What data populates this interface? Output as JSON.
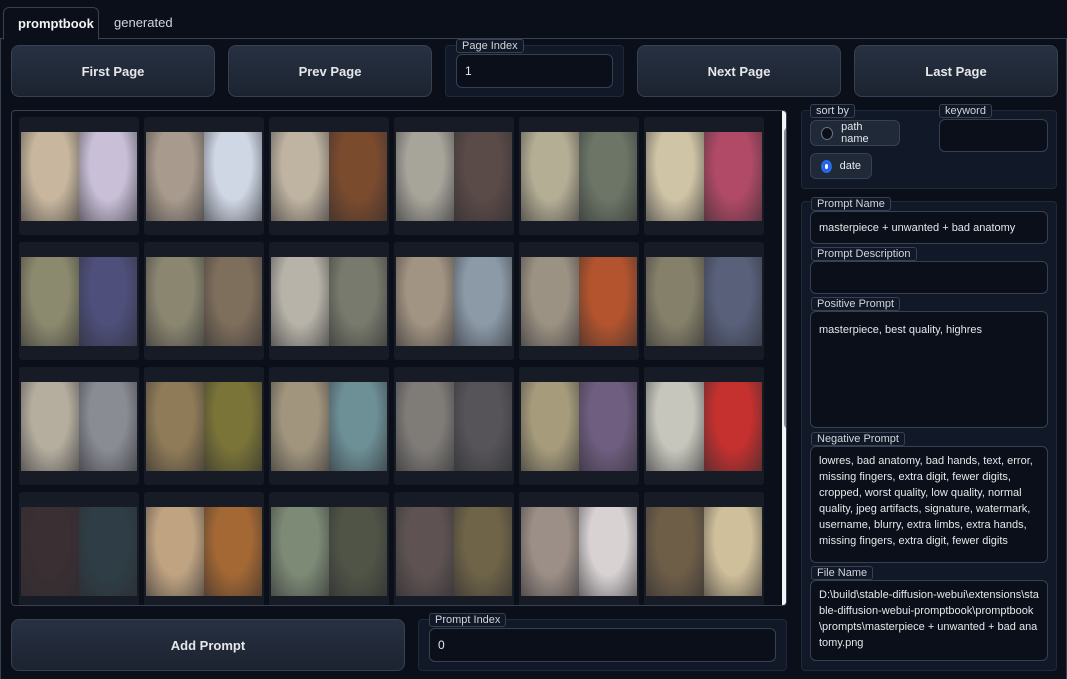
{
  "tabs": [
    {
      "label": "promptbook"
    },
    {
      "label": "generated"
    }
  ],
  "pager": {
    "first_label": "First Page",
    "prev_label": "Prev Page",
    "index_label": "Page Index",
    "index_value": "1",
    "next_label": "Next Page",
    "last_label": "Last Page"
  },
  "gallery": {
    "thumbnails": [
      [
        "#c8b79e",
        "#c9c0d8"
      ],
      [
        "#a89a8c",
        "#cfd6e4"
      ],
      [
        "#bfb3a1",
        "#7b4b2e"
      ],
      [
        "#a7a49a",
        "#5a4a48"
      ],
      [
        "#b4ae94",
        "#6c7566"
      ],
      [
        "#cfc4a6",
        "#b04a66"
      ],
      [
        "#8c8a6e",
        "#4e4f7a"
      ],
      [
        "#8a8670",
        "#7e6e5c"
      ],
      [
        "#b7b3a8",
        "#777a6c"
      ],
      [
        "#a29482",
        "#8c9aa8"
      ],
      [
        "#9c9283",
        "#b3542e"
      ],
      [
        "#85806a",
        "#58607a"
      ],
      [
        "#b5ae9f",
        "#8a8c94"
      ],
      [
        "#8f7b57",
        "#7a7438"
      ],
      [
        "#a1957e",
        "#6d8f96"
      ],
      [
        "#7f7c78",
        "#565459"
      ],
      [
        "#a69c7c",
        "#6f5e80"
      ],
      [
        "#c7c6bd",
        "#c4312f"
      ],
      [
        "#3a2f33",
        "#2f3e46"
      ],
      [
        "#c0a482",
        "#a36834"
      ],
      [
        "#7d8a76",
        "#4f5446"
      ],
      [
        "#5e5352",
        "#6f6448"
      ],
      [
        "#9c8f87",
        "#d8d2d2"
      ],
      [
        "#6e5e48",
        "#cfbf9a"
      ]
    ]
  },
  "add_prompt": {
    "label": "Add Prompt"
  },
  "prompt_index": {
    "label": "Prompt Index",
    "value": "0"
  },
  "sort": {
    "label": "sort by",
    "options": [
      {
        "label": "path name"
      },
      {
        "label": "date"
      }
    ],
    "selected": "date"
  },
  "keyword": {
    "label": "keyword",
    "value": ""
  },
  "details": {
    "prompt_name_label": "Prompt Name",
    "prompt_name": "masterpiece + unwanted + bad anatomy",
    "prompt_description_label": "Prompt Description",
    "prompt_description": "",
    "positive_prompt_label": "Positive Prompt",
    "positive_prompt": "masterpiece, best quality, highres",
    "negative_prompt_label": "Negative Prompt",
    "negative_prompt": "lowres, bad anatomy, bad hands, text, error, missing fingers, extra digit, fewer digits, cropped, worst quality, low quality, normal quality, jpeg artifacts, signature, watermark, username, blurry, extra limbs, extra hands, missing fingers, extra digit, fewer digits",
    "file_name_label": "File Name",
    "file_name": "D:\\build\\stable-diffusion-webui\\extensions\\stable-diffusion-webui-promptbook\\promptbook\\prompts\\masterpiece + unwanted + bad anatomy.png"
  },
  "colors": {
    "accent": "#2563eb",
    "background": "#0b0f19",
    "border": "#374151"
  }
}
